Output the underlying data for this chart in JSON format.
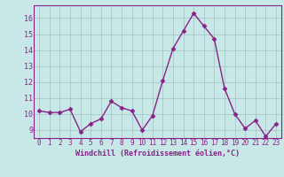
{
  "x": [
    0,
    1,
    2,
    3,
    4,
    5,
    6,
    7,
    8,
    9,
    10,
    11,
    12,
    13,
    14,
    15,
    16,
    17,
    18,
    19,
    20,
    21,
    22,
    23
  ],
  "y": [
    10.2,
    10.1,
    10.1,
    10.3,
    8.9,
    9.4,
    9.7,
    10.8,
    10.4,
    10.2,
    9.0,
    9.9,
    12.1,
    14.1,
    15.2,
    16.3,
    15.5,
    14.7,
    11.6,
    10.0,
    9.1,
    9.6,
    8.6,
    9.4
  ],
  "line_color": "#882288",
  "marker": "D",
  "marker_size": 2.5,
  "linewidth": 1.0,
  "xlabel": "Windchill (Refroidissement éolien,°C)",
  "ylim": [
    8.5,
    16.8
  ],
  "xlim": [
    -0.5,
    23.5
  ],
  "yticks": [
    9,
    10,
    11,
    12,
    13,
    14,
    15,
    16
  ],
  "xticks": [
    0,
    1,
    2,
    3,
    4,
    5,
    6,
    7,
    8,
    9,
    10,
    11,
    12,
    13,
    14,
    15,
    16,
    17,
    18,
    19,
    20,
    21,
    22,
    23
  ],
  "bg_color": "#c8e8e8",
  "grid_color": "#a8c8c8",
  "label_color": "#882288",
  "spine_color": "#882288",
  "tick_fontsize": 5.5,
  "xlabel_fontsize": 6.0
}
